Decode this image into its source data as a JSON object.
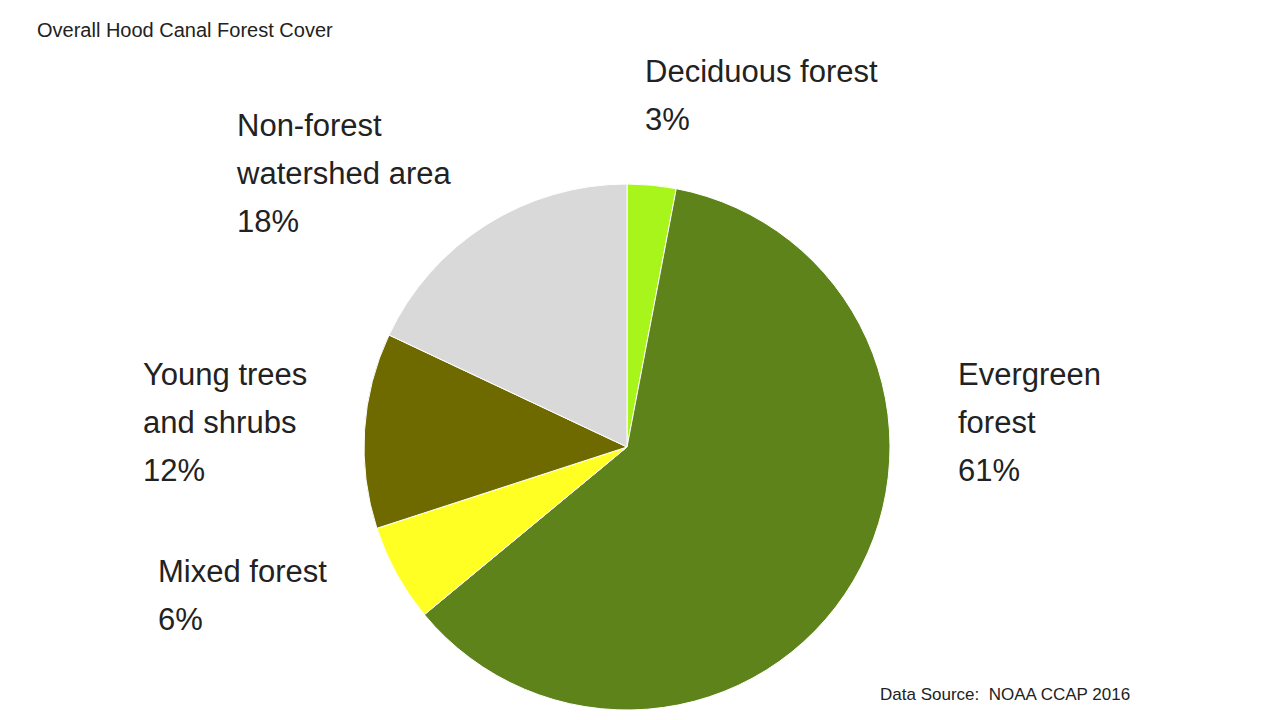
{
  "chart_data": {
    "type": "pie",
    "title": "Overall Hood Canal Forest Cover",
    "categories": [
      "Deciduous forest",
      "Evergreen forest",
      "Mixed forest",
      "Young trees and shrubs",
      "Non-forest watershed area"
    ],
    "values": [
      3,
      61,
      6,
      12,
      18
    ],
    "value_labels": [
      "3%",
      "61%",
      "6%",
      "12%",
      "18%"
    ],
    "colors": [
      "#a8f51c",
      "#5e831a",
      "#ffff24",
      "#6e6a00",
      "#d9d9d9"
    ],
    "data_labels": true,
    "source": "Data Source:  NOAA CCAP 2016"
  }
}
